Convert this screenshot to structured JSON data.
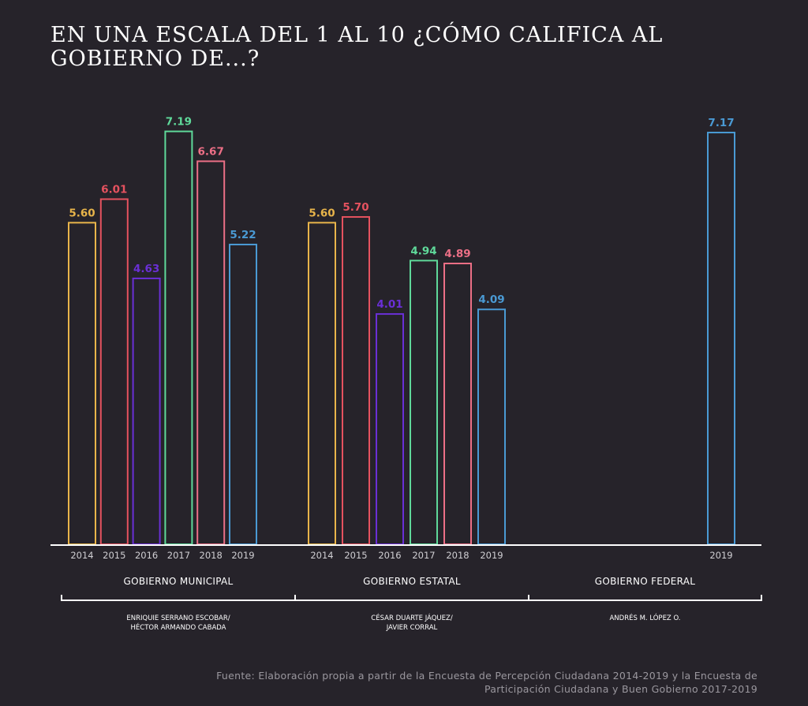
{
  "title": "EN UNA ESCALA DEL 1 AL 10 ¿CÓMO CALIFICA AL GOBIERNO DE...?",
  "source": "Fuente: Elaboración propia a partir de la Encuesta de Percepción Ciudadana 2014-2019 y la Encuesta de Participación Ciudadana y Buen Gobierno 2017-2019",
  "colors": {
    "2014": "#e8b44a",
    "2015": "#e5525f",
    "2016": "#6a2fd6",
    "2017": "#5fd99a",
    "2018": "#ec6f86",
    "2019": "#4a9ad4",
    "background": "#26232a",
    "axis": "#ffffff",
    "tick_label": "#d0cfd3"
  },
  "chart_data": {
    "type": "bar",
    "title": "EN UNA ESCALA DEL 1 AL 10 ¿CÓMO CALIFICA AL GOBIERNO DE...?",
    "ylim": [
      0,
      10
    ],
    "grid": false,
    "groups": [
      {
        "name": "GOBIERNO MUNICIPAL",
        "officials": [
          "ENRIQUIE SERRANO ESCOBAR/",
          "HÉCTOR ARMANDO CABADA"
        ],
        "bars": [
          {
            "year": "2014",
            "value": 5.6,
            "label": "5.60"
          },
          {
            "year": "2015",
            "value": 6.01,
            "label": "6.01"
          },
          {
            "year": "2016",
            "value": 4.63,
            "label": "4.63"
          },
          {
            "year": "2017",
            "value": 7.19,
            "label": "7.19"
          },
          {
            "year": "2018",
            "value": 6.67,
            "label": "6.67"
          },
          {
            "year": "2019",
            "value": 5.22,
            "label": "5.22"
          }
        ]
      },
      {
        "name": "GOBIERNO ESTATAL",
        "officials": [
          "CÉSAR DUARTE JÁQUEZ/",
          "JAVIER CORRAL"
        ],
        "bars": [
          {
            "year": "2014",
            "value": 5.6,
            "label": "5.60"
          },
          {
            "year": "2015",
            "value": 5.7,
            "label": "5.70"
          },
          {
            "year": "2016",
            "value": 4.01,
            "label": "4.01"
          },
          {
            "year": "2017",
            "value": 4.94,
            "label": "4.94"
          },
          {
            "year": "2018",
            "value": 4.89,
            "label": "4.89"
          },
          {
            "year": "2019",
            "value": 4.09,
            "label": "4.09"
          }
        ]
      },
      {
        "name": "GOBIERNO FEDERAL",
        "officials": [
          "ANDRÉS M. LÓPEZ O."
        ],
        "bars": [
          {
            "year": "2019",
            "value": 7.17,
            "label": "7.17"
          }
        ]
      }
    ]
  }
}
